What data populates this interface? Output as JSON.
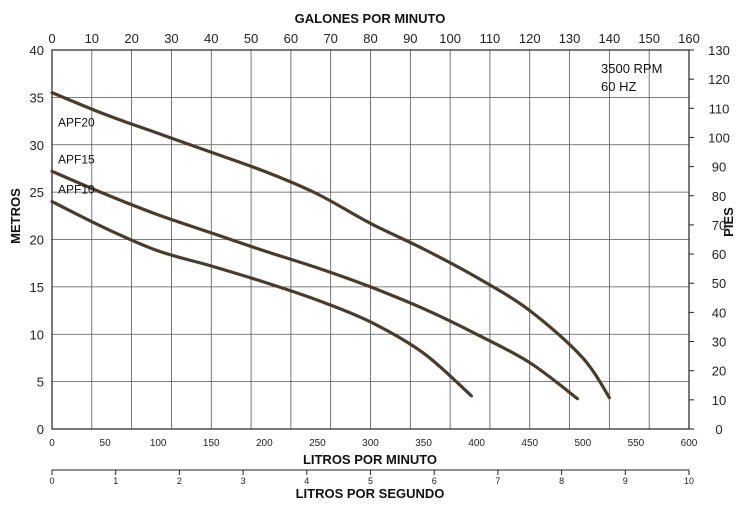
{
  "chart_data": {
    "type": "line",
    "title": "",
    "annotations": [
      "3500 RPM",
      "60 HZ"
    ],
    "axes": {
      "x_bottom": {
        "label": "LITROS POR MINUTO",
        "range": [
          0,
          600
        ],
        "ticks": [
          0,
          50,
          100,
          150,
          200,
          250,
          300,
          350,
          400,
          450,
          500,
          550,
          600
        ]
      },
      "x_top": {
        "label": "GALONES POR MINUTO",
        "range": [
          0,
          160
        ],
        "ticks": [
          0,
          10,
          20,
          30,
          40,
          50,
          60,
          70,
          80,
          90,
          100,
          110,
          120,
          130,
          140,
          150,
          160
        ]
      },
      "x_bottom2": {
        "label": "LITROS POR SEGUNDO",
        "range": [
          0,
          10
        ],
        "ticks": [
          0,
          1,
          2,
          3,
          4,
          5,
          6,
          7,
          8,
          9,
          10
        ]
      },
      "y_left": {
        "label": "METROS",
        "range": [
          0,
          40
        ],
        "ticks": [
          0,
          5,
          10,
          15,
          20,
          25,
          30,
          35,
          40
        ]
      },
      "y_right": {
        "label": "PIES",
        "range": [
          0,
          130
        ],
        "ticks": [
          0,
          10,
          20,
          30,
          40,
          50,
          60,
          70,
          80,
          90,
          100,
          110,
          120,
          130
        ]
      }
    },
    "grid": true,
    "series": [
      {
        "name": "APF20",
        "x": [
          0,
          50,
          100,
          150,
          200,
          250,
          300,
          350,
          400,
          450,
          500,
          525
        ],
        "y": [
          35.5,
          33.2,
          31.2,
          29.2,
          27.2,
          24.8,
          21.7,
          19.0,
          16.0,
          12.5,
          7.5,
          3.3
        ]
      },
      {
        "name": "APF15",
        "x": [
          0,
          50,
          100,
          150,
          200,
          250,
          300,
          350,
          400,
          450,
          495
        ],
        "y": [
          27.2,
          24.8,
          22.6,
          20.7,
          18.8,
          17.0,
          15.0,
          12.7,
          10.0,
          7.0,
          3.2
        ]
      },
      {
        "name": "APF10",
        "x": [
          0,
          50,
          100,
          150,
          200,
          250,
          300,
          350,
          395
        ],
        "y": [
          24.0,
          21.2,
          18.8,
          17.2,
          15.5,
          13.6,
          11.3,
          8.0,
          3.5
        ]
      }
    ],
    "colors": {
      "curve": "#4a3c28",
      "grid": "#555555"
    }
  }
}
